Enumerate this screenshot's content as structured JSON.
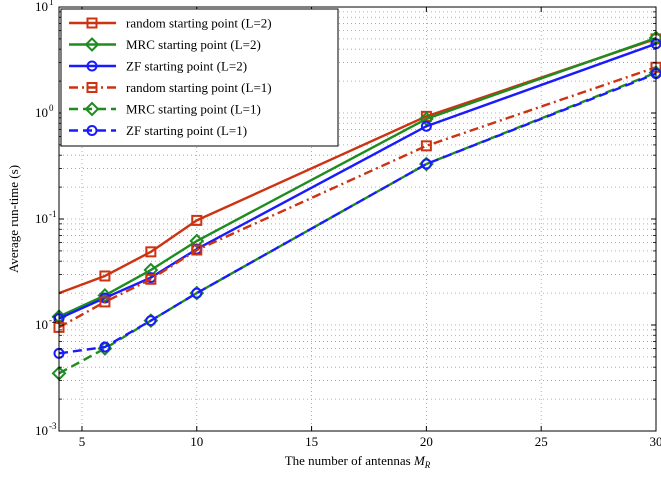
{
  "chart_data": {
    "type": "line",
    "xlabel": "The number of antennas",
    "xlabel_symbol": "M",
    "xlabel_subscript": "R",
    "ylabel": "Average run-time (s)",
    "xlim": [
      4,
      30
    ],
    "ylim": [
      0.001,
      10
    ],
    "yscale": "log",
    "grid": true,
    "legend_position": "top-left",
    "x_ticks": [
      5,
      10,
      15,
      20,
      25,
      30
    ],
    "y_ticks": [
      {
        "value": 0.001,
        "base": "10",
        "exp": "-3"
      },
      {
        "value": 0.01,
        "base": "10",
        "exp": "-2"
      },
      {
        "value": 0.1,
        "base": "10",
        "exp": "-1"
      },
      {
        "value": 1,
        "base": "10",
        "exp": "0"
      },
      {
        "value": 10,
        "base": "10",
        "exp": "1"
      }
    ],
    "series": [
      {
        "name": "random starting point (L=2)",
        "color": "#cc3311",
        "marker": "square",
        "dash": "solid",
        "x": [
          4,
          6,
          8,
          10,
          20,
          30
        ],
        "y": [
          0.02,
          0.029,
          0.049,
          0.097,
          0.93,
          5.0
        ]
      },
      {
        "name": "MRC starting point (L=2)",
        "color": "#1e8c1e",
        "marker": "diamond",
        "dash": "solid",
        "x": [
          4,
          6,
          8,
          10,
          20,
          30
        ],
        "y": [
          0.012,
          0.019,
          0.033,
          0.062,
          0.88,
          5.1
        ]
      },
      {
        "name": "ZF starting point (L=2)",
        "color": "#1a1aff",
        "marker": "circle",
        "dash": "solid",
        "x": [
          4,
          6,
          8,
          10,
          20,
          30
        ],
        "y": [
          0.0115,
          0.018,
          0.028,
          0.052,
          0.75,
          4.5
        ]
      },
      {
        "name": "random starting point (L=1)",
        "color": "#cc3311",
        "marker": "square",
        "dash": "dashdot",
        "x": [
          4,
          6,
          8,
          10,
          20,
          30
        ],
        "y": [
          0.0095,
          0.0165,
          0.027,
          0.051,
          0.49,
          2.7
        ]
      },
      {
        "name": "MRC starting point (L=1)",
        "color": "#1e8c1e",
        "marker": "diamond",
        "dash": "dashed",
        "x": [
          4,
          6,
          8,
          10,
          20,
          30
        ],
        "y": [
          0.0035,
          0.006,
          0.011,
          0.02,
          0.33,
          2.4
        ]
      },
      {
        "name": "ZF starting point (L=1)",
        "color": "#1a1aff",
        "marker": "circle",
        "dash": "dashed",
        "x": [
          4,
          6,
          8,
          10,
          20,
          30
        ],
        "y": [
          0.0054,
          0.0062,
          0.011,
          0.02,
          0.33,
          2.35
        ]
      }
    ]
  }
}
